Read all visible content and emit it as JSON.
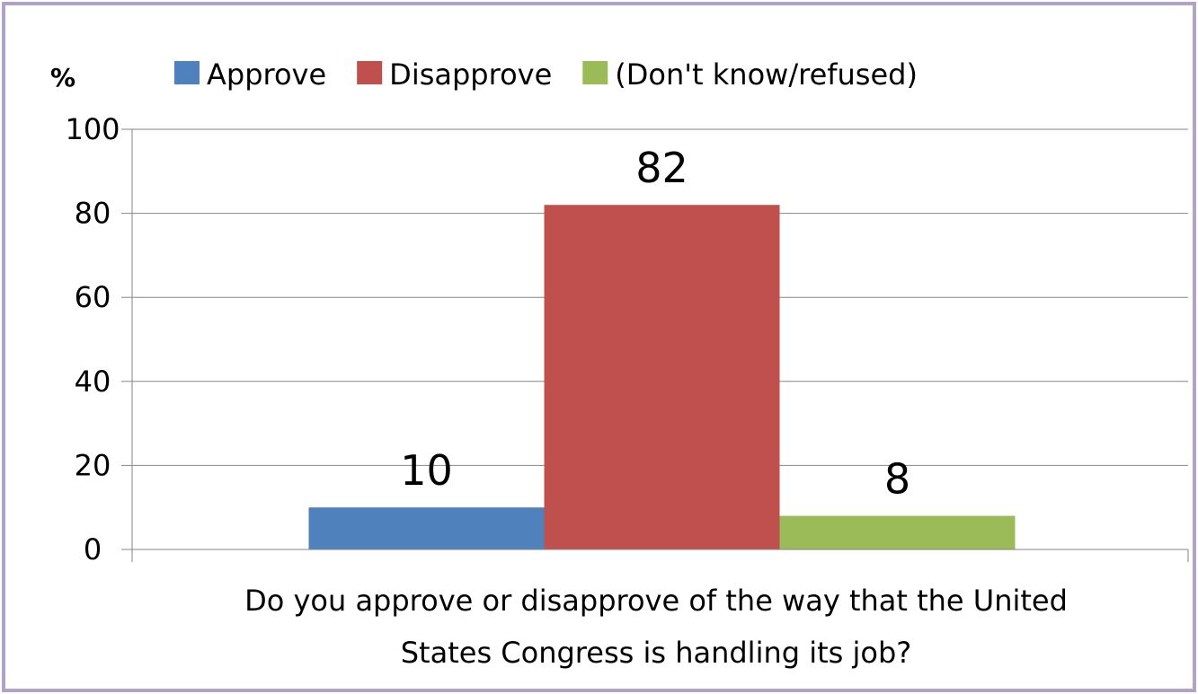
{
  "chart_data": {
    "type": "bar",
    "title": "",
    "ylabel": "%",
    "xlabel": "Do you approve or disapprove of the way that the United States Congress is handling its job?",
    "xlabel_lines": [
      "Do you approve or disapprove of the way that the United",
      "States Congress is handling its job?"
    ],
    "categories": [
      "Do you approve or disapprove of the way that the United States Congress is handling its job?"
    ],
    "ylim": [
      0,
      100
    ],
    "yticks": [
      "0",
      "20",
      "40",
      "60",
      "80",
      "100"
    ],
    "grid": true,
    "legend_position": "top",
    "series": [
      {
        "name": "Approve",
        "values": [
          10
        ],
        "color": "#4f81bd",
        "label": "10"
      },
      {
        "name": "Disapprove",
        "values": [
          82
        ],
        "color": "#c0504d",
        "label": "82"
      },
      {
        "name": "(Don't know/refused)",
        "values": [
          8
        ],
        "color": "#9bbb59",
        "label": "8"
      }
    ]
  },
  "frame": {
    "border_color": "#b3a2c7"
  }
}
